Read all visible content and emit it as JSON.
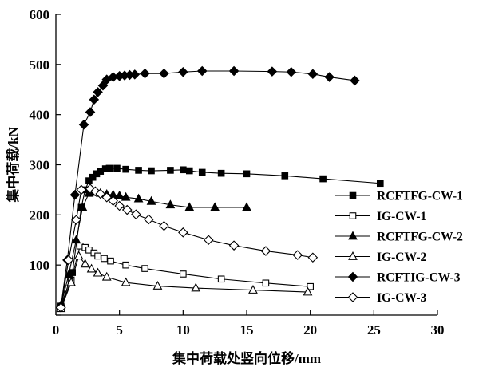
{
  "chart_data": {
    "type": "line",
    "xlabel": "集中荷载处竖向位移/mm",
    "ylabel": "集中荷载/kN",
    "xlim": [
      0,
      30
    ],
    "ylim": [
      0,
      600
    ],
    "x_ticks": [
      0,
      5,
      10,
      15,
      20,
      25,
      30
    ],
    "y_ticks": [
      0,
      100,
      200,
      300,
      400,
      500,
      600
    ],
    "y_tick_labels": [
      "",
      "100",
      "200",
      "300",
      "400",
      "500",
      "600"
    ],
    "grid": false,
    "legend_position": "right",
    "series": [
      {
        "name": "RCFTFG-CW-1",
        "marker": "square-filled",
        "x": [
          0.4,
          1.3,
          2.0,
          2.3,
          2.6,
          2.9,
          3.2,
          3.5,
          3.9,
          4.2,
          4.8,
          5.5,
          6.5,
          7.5,
          9.0,
          10.0,
          10.5,
          11.5,
          13.0,
          15.0,
          18.0,
          21.0,
          25.5
        ],
        "y": [
          18,
          85,
          215,
          250,
          268,
          275,
          282,
          287,
          292,
          293,
          293,
          291,
          289,
          288,
          289,
          290,
          288,
          285,
          283,
          282,
          278,
          272,
          263
        ]
      },
      {
        "name": "IG-CW-1",
        "marker": "square-open",
        "x": [
          0.4,
          1.2,
          1.9,
          2.3,
          2.6,
          3.0,
          3.3,
          3.8,
          4.3,
          5.5,
          7.0,
          10.0,
          13.0,
          16.5,
          20.0
        ],
        "y": [
          15,
          70,
          138,
          135,
          130,
          124,
          118,
          113,
          108,
          100,
          93,
          82,
          72,
          64,
          57
        ]
      },
      {
        "name": "RCFTFG-CW-2",
        "marker": "triangle-filled",
        "x": [
          0.4,
          1.0,
          1.6,
          2.1,
          2.6,
          3.0,
          3.5,
          4.0,
          4.5,
          5.0,
          5.5,
          6.5,
          7.5,
          9.0,
          10.5,
          12.5,
          15.0
        ],
        "y": [
          20,
          80,
          150,
          215,
          243,
          245,
          243,
          241,
          240,
          238,
          235,
          232,
          227,
          220,
          215,
          215,
          215
        ]
      },
      {
        "name": "IG-CW-2",
        "marker": "triangle-open",
        "x": [
          0.4,
          1.2,
          1.8,
          2.3,
          2.8,
          3.3,
          4.0,
          5.5,
          8.0,
          11.0,
          15.5,
          19.8
        ],
        "y": [
          13,
          65,
          118,
          102,
          92,
          84,
          76,
          65,
          58,
          54,
          50,
          46
        ]
      },
      {
        "name": "RCFTIG-CW-3",
        "marker": "diamond-filled",
        "x": [
          0.4,
          0.9,
          1.5,
          2.2,
          2.7,
          3.0,
          3.3,
          3.7,
          4.0,
          4.5,
          5.0,
          5.4,
          5.8,
          6.2,
          7.0,
          8.5,
          10.0,
          11.5,
          14.0,
          17.0,
          18.5,
          20.2,
          21.5,
          23.5
        ],
        "y": [
          18,
          110,
          240,
          380,
          405,
          430,
          445,
          458,
          470,
          475,
          477,
          478,
          479,
          480,
          482,
          482,
          485,
          487,
          487,
          486,
          485,
          481,
          475,
          468
        ]
      },
      {
        "name": "IG-CW-3",
        "marker": "diamond-open",
        "x": [
          0.4,
          1.0,
          1.6,
          2.0,
          2.7,
          3.1,
          3.5,
          4.0,
          4.5,
          5.0,
          5.6,
          6.3,
          7.3,
          8.5,
          10.0,
          12.0,
          14.0,
          16.5,
          19.0,
          20.2
        ],
        "y": [
          15,
          110,
          190,
          250,
          252,
          247,
          242,
          235,
          228,
          218,
          210,
          201,
          191,
          178,
          165,
          150,
          139,
          128,
          120,
          115
        ]
      }
    ]
  }
}
